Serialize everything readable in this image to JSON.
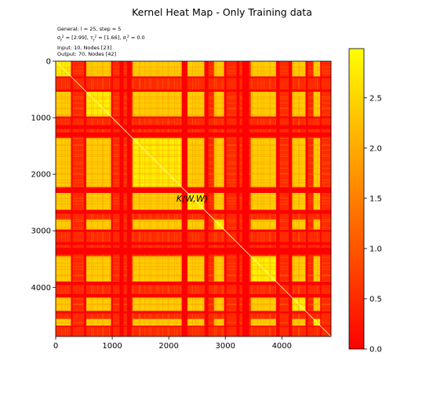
{
  "chart_data": {
    "type": "heatmap",
    "title": "Kernel Heat Map - Only Training data",
    "info_lines": [
      {
        "text": "General: l = 25, step = 5"
      },
      {
        "pre": "σ",
        "sub1": "f",
        "sup1": "2",
        "mid1": " = [2.99], τ",
        "sub2": "f",
        "sup2": "2",
        "mid2": " = [1.66], σ",
        "sub3": "l",
        "sup3": "2",
        "post": " = 0.0"
      },
      {
        "text": "Input: 10, Nodes [23]"
      },
      {
        "text": "Output: 70, Nodes [42]"
      }
    ],
    "annotation": "K(W,W)",
    "matrix_size": 4870,
    "xlim": [
      0,
      4870
    ],
    "ylim": [
      4870,
      0
    ],
    "x_ticks": [
      0,
      1000,
      2000,
      3000,
      4000
    ],
    "y_ticks": [
      0,
      1000,
      2000,
      3000,
      4000
    ],
    "colorbar": {
      "colormap": "autumn",
      "vmin": 0.0,
      "vmax": 2.99,
      "ticks": [
        "0.0",
        "0.5",
        "1.0",
        "1.5",
        "2.0",
        "2.5"
      ],
      "tick_values": [
        0.0,
        0.5,
        1.0,
        1.5,
        2.0,
        2.5
      ]
    },
    "diagonal_value": 2.99,
    "high_value_blocks": [
      [
        0,
        270
      ],
      [
        540,
        980
      ],
      [
        1360,
        2230
      ],
      [
        2330,
        2630
      ],
      [
        2800,
        2980
      ],
      [
        3450,
        3900
      ],
      [
        4180,
        4420
      ],
      [
        4560,
        4680
      ]
    ],
    "low_value_bands": [
      [
        270,
        300
      ],
      [
        500,
        540
      ],
      [
        980,
        1010
      ],
      [
        1130,
        1200
      ],
      [
        1260,
        1340
      ],
      [
        2230,
        2330
      ],
      [
        2630,
        2700
      ],
      [
        2980,
        3020
      ],
      [
        3200,
        3250
      ],
      [
        3300,
        3420
      ],
      [
        3900,
        3960
      ],
      [
        4120,
        4180
      ],
      [
        4420,
        4460
      ],
      [
        4680,
        4700
      ]
    ]
  }
}
